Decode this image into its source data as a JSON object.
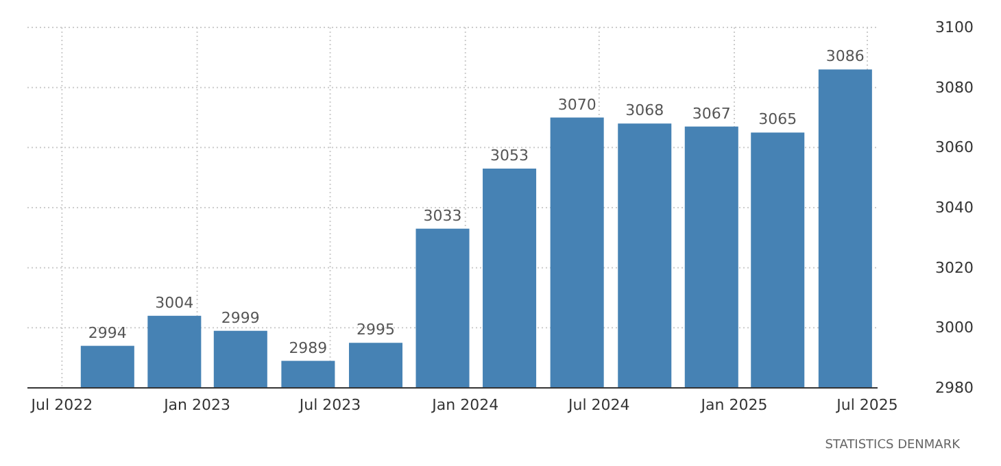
{
  "chart_data": {
    "type": "bar",
    "x": [
      "2022-09",
      "2022-12",
      "2023-03",
      "2023-06",
      "2023-09",
      "2023-12",
      "2024-03",
      "2024-06",
      "2024-09",
      "2024-12",
      "2025-03",
      "2025-06"
    ],
    "values": [
      2994,
      3004,
      2999,
      2989,
      2995,
      3033,
      3053,
      3070,
      3068,
      3067,
      3065,
      3086
    ],
    "color": "#4682b4",
    "xlim": [
      "2022-05-15",
      "2025-07-15"
    ],
    "xticks": [
      {
        "value": "2022-07",
        "label": "Jul 2022"
      },
      {
        "value": "2023-01",
        "label": "Jan 2023"
      },
      {
        "value": "2023-07",
        "label": "Jul 2023"
      },
      {
        "value": "2024-01",
        "label": "Jan 2024"
      },
      {
        "value": "2024-07",
        "label": "Jul 2024"
      },
      {
        "value": "2025-01",
        "label": "Jan 2025"
      },
      {
        "value": "2025-07",
        "label": "Jul 2025"
      }
    ],
    "ylim": [
      2980,
      3100
    ],
    "yticks": [
      2980,
      3000,
      3020,
      3040,
      3060,
      3080,
      3100
    ],
    "grid": true,
    "data_labels": true,
    "annotations": [
      "STATISTICS DENMARK"
    ]
  }
}
